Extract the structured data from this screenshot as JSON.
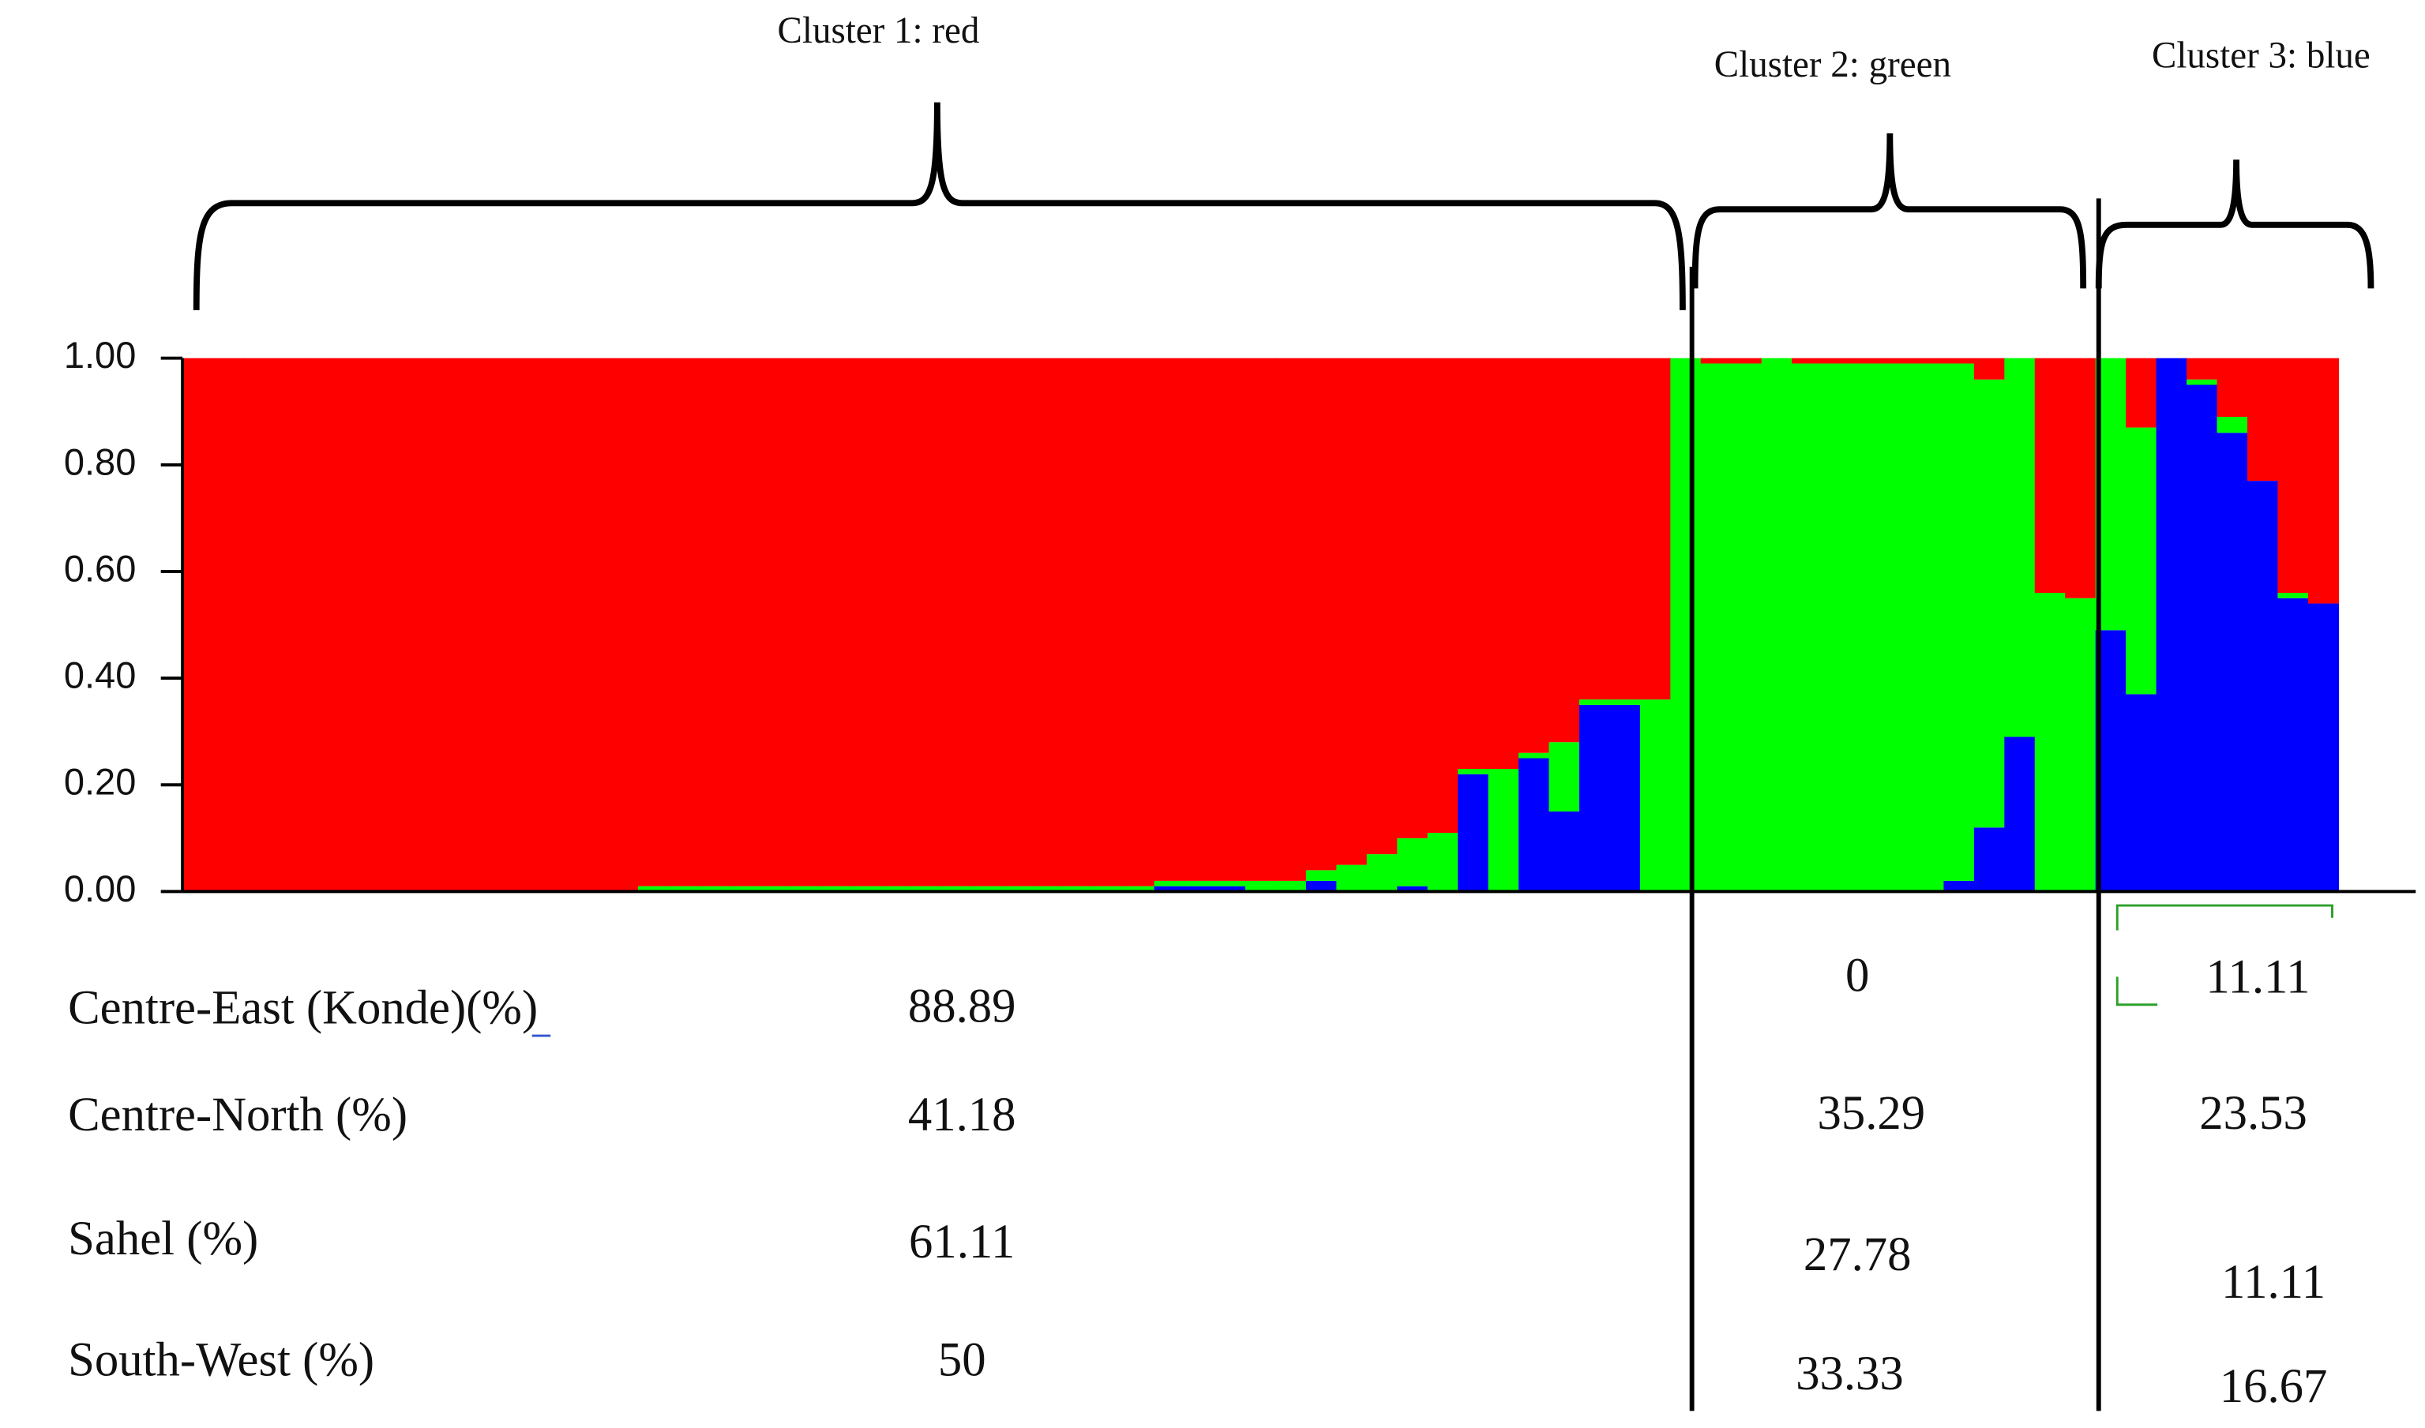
{
  "chart_data": {
    "type": "stacked_bar",
    "annotations": [
      "Cluster 1: red",
      "Cluster 2: green",
      "Cluster 3: blue"
    ],
    "categories": [
      null,
      null,
      null,
      null,
      null,
      null,
      null,
      null,
      null,
      null,
      null,
      null,
      null,
      null,
      null,
      null,
      null,
      null,
      null,
      null,
      null,
      null,
      null,
      null,
      null,
      null,
      null,
      null,
      null,
      null,
      null,
      null,
      null,
      null,
      null,
      null,
      null,
      null,
      null,
      null,
      null,
      null,
      null,
      null,
      null,
      null,
      null,
      null,
      null,
      null,
      null,
      null,
      null,
      null,
      null,
      null,
      null,
      null,
      null,
      null,
      null,
      null,
      null,
      null,
      null,
      null,
      null,
      null,
      null,
      null,
      null
    ],
    "series": [
      {
        "color": "#0000ff",
        "values": [
          0,
          0,
          0,
          0,
          0,
          0,
          0,
          0,
          0,
          0,
          0,
          0,
          0,
          0,
          0,
          0,
          0,
          0,
          0,
          0,
          0,
          0,
          0,
          0,
          0,
          0,
          0,
          0,
          0,
          0,
          0,
          0,
          0.01,
          0.01,
          0.01,
          0,
          0,
          0.02,
          0,
          0,
          0.01,
          0,
          0.22,
          0,
          0.25,
          0.15,
          0.35,
          0.35,
          0,
          0,
          0,
          0,
          0,
          0,
          0,
          0,
          0,
          0,
          0.02,
          0.12,
          0.29,
          0,
          0,
          0.49,
          0.37,
          1,
          0.95,
          0.86,
          0.77,
          0.55,
          0.54
        ]
      },
      {
        "color": "#00ff00",
        "values": [
          0,
          0,
          0,
          0,
          0,
          0,
          0,
          0,
          0,
          0,
          0,
          0,
          0,
          0,
          0,
          0.01,
          0.01,
          0.01,
          0.01,
          0.01,
          0.01,
          0.01,
          0.01,
          0.01,
          0.01,
          0.01,
          0.01,
          0.01,
          0.01,
          0.01,
          0.01,
          0.01,
          0.01,
          0.01,
          0.01,
          0.02,
          0.02,
          0.02,
          0.05,
          0.07,
          0.09,
          0.11,
          0.01,
          0.23,
          0.01,
          0.13,
          0.01,
          0.01,
          0.36,
          1,
          0.99,
          0.99,
          1,
          0.99,
          0.99,
          0.99,
          0.99,
          0.99,
          0.97,
          0.84,
          0.71,
          0.56,
          0.55,
          0.51,
          0.5,
          0,
          0.01,
          0.03,
          0,
          0.01,
          0
        ]
      },
      {
        "color": "#ff0000",
        "values": [
          1,
          1,
          1,
          1,
          1,
          1,
          1,
          1,
          1,
          1,
          1,
          1,
          1,
          1,
          1,
          0.99,
          0.99,
          0.99,
          0.99,
          0.99,
          0.99,
          0.99,
          0.99,
          0.99,
          0.99,
          0.99,
          0.99,
          0.99,
          0.99,
          0.99,
          0.99,
          0.99,
          0.98,
          0.98,
          0.98,
          0.98,
          0.98,
          0.96,
          0.95,
          0.93,
          0.9,
          0.89,
          0.77,
          0.77,
          0.74,
          0.72,
          0.64,
          0.64,
          0.64,
          0,
          0.01,
          0.01,
          0,
          0.01,
          0.01,
          0.01,
          0.01,
          0.01,
          0.01,
          0.04,
          0,
          0.44,
          0.45,
          0,
          0.13,
          0,
          0.04,
          0.11,
          0.23,
          0.44,
          0.46
        ]
      }
    ],
    "ylim": [
      0,
      1
    ],
    "yticks": [
      {
        "value": 0,
        "label": "0.00"
      },
      {
        "value": 0.2,
        "label": "0.20"
      },
      {
        "value": 0.4,
        "label": "0.40"
      },
      {
        "value": 0.6,
        "label": "0.60"
      },
      {
        "value": 0.8,
        "label": "0.80"
      },
      {
        "value": 1,
        "label": "1.00"
      }
    ]
  },
  "table": {
    "rows": [
      [
        "Centre-East (Konde)(%)",
        88.89,
        0,
        11.11
      ],
      [
        "Centre-North (%)",
        41.18,
        35.29,
        23.53
      ],
      [
        "Sahel (%)",
        61.11,
        27.78,
        11.11
      ],
      [
        "South-West (%)",
        50,
        33.33,
        16.67
      ]
    ]
  }
}
